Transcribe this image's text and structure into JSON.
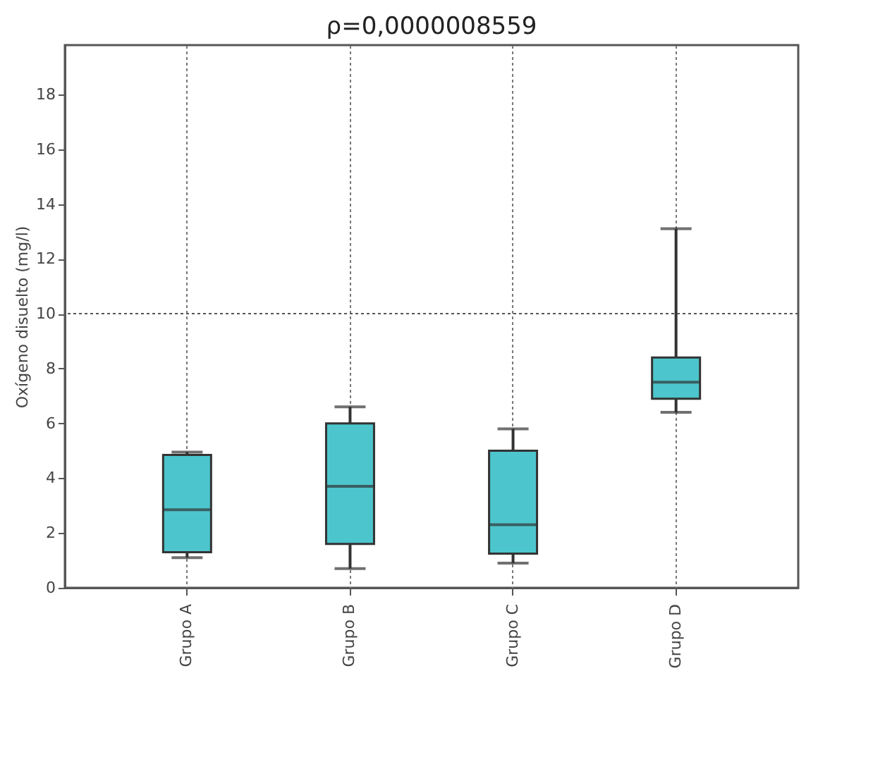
{
  "chart_data": {
    "type": "box",
    "title": "ρ=0,0000008559",
    "ylabel": "Oxígeno disuelto (mg/l)",
    "categories": [
      "Grupo A",
      "Grupo B",
      "Grupo C",
      "Grupo D"
    ],
    "boxes": [
      {
        "low": 1.1,
        "q1": 1.3,
        "median": 2.85,
        "q3": 4.85,
        "high": 4.95
      },
      {
        "low": 0.7,
        "q1": 1.6,
        "median": 3.7,
        "q3": 6.0,
        "high": 6.6
      },
      {
        "low": 0.9,
        "q1": 1.25,
        "median": 2.3,
        "q3": 5.0,
        "high": 5.8
      },
      {
        "low": 6.4,
        "q1": 6.9,
        "median": 7.5,
        "q3": 8.4,
        "high": 13.1
      }
    ],
    "color": "#4cc6cc",
    "ylim": [
      0,
      19.8
    ],
    "yticks": [
      0,
      2,
      4,
      6,
      8,
      10,
      12,
      14,
      16,
      18
    ],
    "grid": "x",
    "ref_lines": [
      {
        "axis": "y",
        "value": 10,
        "line_style": "dotted",
        "color": "#555555"
      }
    ]
  }
}
